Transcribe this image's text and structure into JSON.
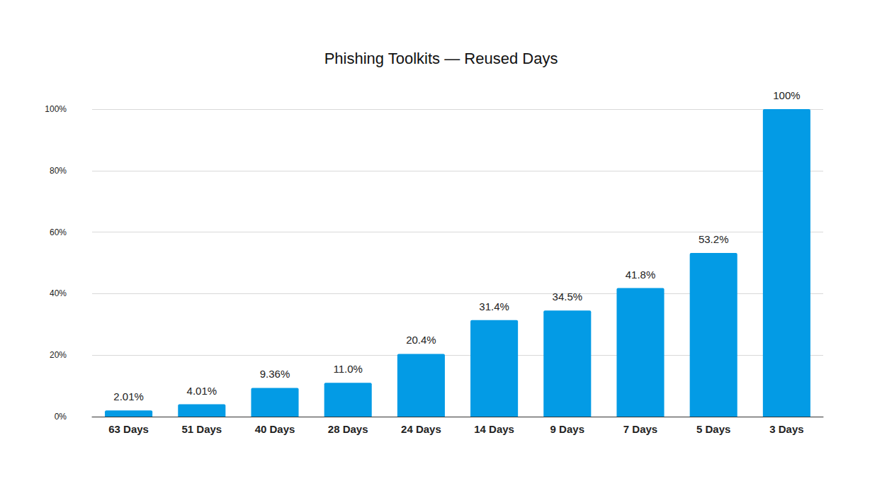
{
  "chart_data": {
    "type": "bar",
    "title": "Phishing Toolkits — Reused Days",
    "categories": [
      "63 Days",
      "51 Days",
      "40 Days",
      "28 Days",
      "24 Days",
      "14 Days",
      "9 Days",
      "7 Days",
      "5 Days",
      "3 Days"
    ],
    "values": [
      2.01,
      4.01,
      9.36,
      11.0,
      20.4,
      31.4,
      34.5,
      41.8,
      53.2,
      100
    ],
    "value_labels": [
      "2.01%",
      "4.01%",
      "9.36%",
      "11.0%",
      "20.4%",
      "31.4%",
      "34.5%",
      "41.8%",
      "53.2%",
      "100%"
    ],
    "color": "#039be5",
    "ylim": [
      0,
      100
    ],
    "yticks": [
      {
        "value": 0,
        "label": "0%"
      },
      {
        "value": 20,
        "label": "20%"
      },
      {
        "value": 40,
        "label": "40%"
      },
      {
        "value": 60,
        "label": "60%"
      },
      {
        "value": 80,
        "label": "80%"
      },
      {
        "value": 100,
        "label": "100%"
      }
    ],
    "grid": true,
    "data_labels": true
  }
}
